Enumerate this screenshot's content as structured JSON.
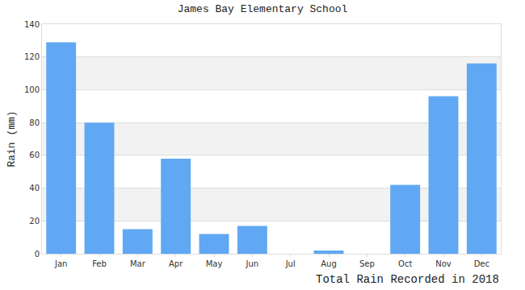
{
  "chart_data": {
    "type": "bar",
    "title": "James Bay Elementary School",
    "ylabel": "Rain (mm)",
    "xlabel": "Total Rain Recorded in 2018",
    "categories": [
      "Jan",
      "Feb",
      "Mar",
      "Apr",
      "May",
      "Jun",
      "Jul",
      "Aug",
      "Sep",
      "Oct",
      "Nov",
      "Dec"
    ],
    "values": [
      129,
      80,
      15,
      58,
      12,
      17,
      0,
      2,
      0,
      42,
      96,
      116
    ],
    "color": "#60a8f4",
    "ylim": [
      0,
      140
    ],
    "yticks": [
      0,
      20,
      40,
      60,
      80,
      100,
      120,
      140
    ],
    "grid": true
  }
}
